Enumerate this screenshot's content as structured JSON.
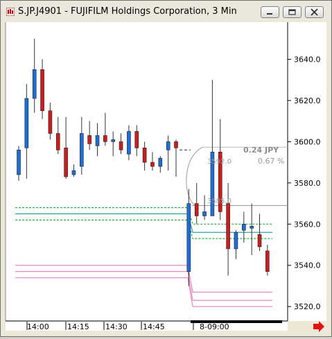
{
  "window": {
    "title": "S.JP.J4901 - FUJIFILM Holdings Corporation, 3 Min"
  },
  "icons": {
    "app": "chart-icon",
    "minimize": "minimize-icon",
    "restore": "restore-icon",
    "close": "close-icon",
    "scroll": "right-arrow-icon"
  },
  "chart": {
    "price_axis": [
      "3640.0",
      "3620.0",
      "3600.0",
      "3580.0",
      "3560.0",
      "3540.0",
      "3520.0"
    ],
    "time_axis": [
      "14:00",
      "14:15",
      "14:30",
      "14:45",
      "8-09:00"
    ],
    "gap_label": "0.24 JPY",
    "gap_percent": "0.67 %",
    "marker_top": "3592.0",
    "marker_bottom": "3585.0"
  },
  "chart_data": {
    "type": "candlestick",
    "ylim": [
      3513,
      3658
    ],
    "candles": [
      {
        "o": 3596,
        "h": 3598,
        "l": 3581,
        "c": 3584,
        "color": "blue"
      },
      {
        "o": 3597,
        "h": 3628,
        "l": 3582,
        "c": 3621,
        "color": "blue"
      },
      {
        "o": 3621,
        "h": 3650,
        "l": 3614,
        "c": 3635,
        "color": "blue"
      },
      {
        "o": 3635,
        "h": 3640,
        "l": 3611,
        "c": 3615,
        "color": "red"
      },
      {
        "o": 3615,
        "h": 3619,
        "l": 3601,
        "c": 3604,
        "color": "red"
      },
      {
        "o": 3604,
        "h": 3612,
        "l": 3594,
        "c": 3596,
        "color": "red"
      },
      {
        "o": 3597,
        "h": 3612,
        "l": 3582,
        "c": 3583,
        "color": "red"
      },
      {
        "o": 3584,
        "h": 3589,
        "l": 3583,
        "c": 3586,
        "color": "blue"
      },
      {
        "o": 3588,
        "h": 3612,
        "l": 3584,
        "c": 3604,
        "color": "blue"
      },
      {
        "o": 3603,
        "h": 3610,
        "l": 3596,
        "c": 3599,
        "color": "red"
      },
      {
        "o": 3598,
        "h": 3609,
        "l": 3593,
        "c": 3603,
        "color": "blue"
      },
      {
        "o": 3603,
        "h": 3614,
        "l": 3598,
        "c": 3600,
        "color": "red"
      },
      {
        "o": 3600,
        "h": 3605,
        "l": 3593,
        "c": 3601,
        "color": "blue"
      },
      {
        "o": 3600,
        "h": 3604,
        "l": 3594,
        "c": 3596,
        "color": "red"
      },
      {
        "o": 3594,
        "h": 3608,
        "l": 3591,
        "c": 3605,
        "color": "blue"
      },
      {
        "o": 3605,
        "h": 3608,
        "l": 3593,
        "c": 3597,
        "color": "red"
      },
      {
        "o": 3597,
        "h": 3600,
        "l": 3586,
        "c": 3590,
        "color": "red"
      },
      {
        "o": 3590,
        "h": 3595,
        "l": 3586,
        "c": 3588,
        "color": "red"
      },
      {
        "o": 3588,
        "h": 3593,
        "l": 3585,
        "c": 3592,
        "color": "blue"
      },
      {
        "o": 3596,
        "h": 3603,
        "l": 3586,
        "c": 3600,
        "color": "blue"
      },
      {
        "o": 3600,
        "h": 3601,
        "l": 3583,
        "c": 3597,
        "color": "red"
      },
      {
        "o": 3537,
        "h": 3577,
        "l": 3530,
        "c": 3570,
        "color": "blue"
      },
      {
        "o": 3570,
        "h": 3580,
        "l": 3560,
        "c": 3564,
        "color": "red"
      },
      {
        "o": 3566,
        "h": 3574,
        "l": 3562,
        "c": 3564,
        "color": "blue"
      },
      {
        "o": 3564,
        "h": 3630,
        "l": 3564,
        "c": 3595,
        "color": "blue"
      },
      {
        "o": 3595,
        "h": 3611,
        "l": 3562,
        "c": 3566,
        "color": "red"
      },
      {
        "o": 3570,
        "h": 3580,
        "l": 3535,
        "c": 3548,
        "color": "red"
      },
      {
        "o": 3548,
        "h": 3557,
        "l": 3543,
        "c": 3556,
        "color": "blue"
      },
      {
        "o": 3557,
        "h": 3566,
        "l": 3551,
        "c": 3560,
        "color": "blue"
      },
      {
        "o": 3558,
        "h": 3570,
        "l": 3545,
        "c": 3559,
        "color": "blue"
      },
      {
        "o": 3555,
        "h": 3565,
        "l": 3547,
        "c": 3549,
        "color": "red"
      },
      {
        "o": 3547,
        "h": 3550,
        "l": 3535,
        "c": 3537,
        "color": "red"
      }
    ],
    "overlays": [
      {
        "name": "green-line-top",
        "color": "#20b040",
        "dashed": true,
        "before": 3568,
        "after": 3560
      },
      {
        "name": "teal-line",
        "color": "#1a9a98",
        "dashed": false,
        "before": 3565,
        "after": 3556
      },
      {
        "name": "green-line-bottom",
        "color": "#20b040",
        "dashed": true,
        "before": 3562,
        "after": 3553
      },
      {
        "name": "pink-line-top",
        "color": "#e889c2",
        "dashed": false,
        "before": 3540,
        "after": 3527
      },
      {
        "name": "pink-line-mid",
        "color": "#e889c2",
        "dashed": false,
        "before": 3537,
        "after": 3523
      },
      {
        "name": "pink-line-bottom",
        "color": "#e889c2",
        "dashed": false,
        "before": 3534,
        "after": 3520
      }
    ],
    "gap_level": 3569,
    "last_close_level": 3596,
    "colors": {
      "bull": "#1f6dd6",
      "bear": "#c81e1e",
      "grid": "#c8c8c8",
      "axis": "#000000"
    }
  }
}
